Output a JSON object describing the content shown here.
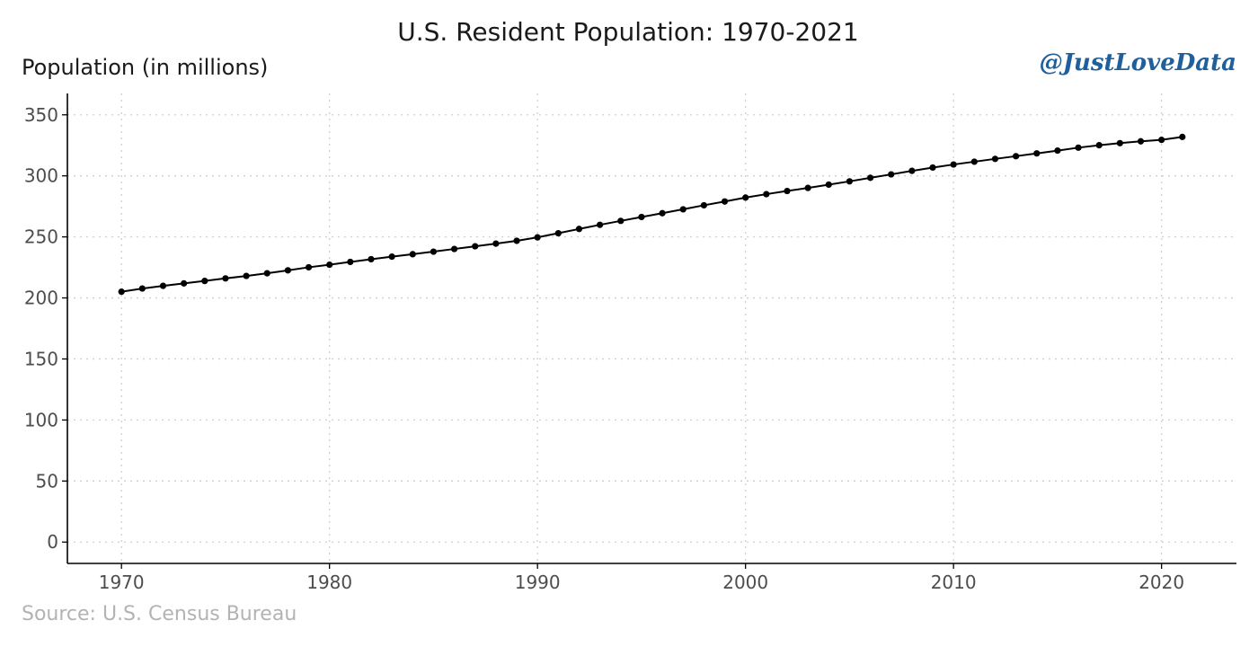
{
  "chart_data": {
    "type": "line",
    "title": "U.S. Resident Population: 1970-2021",
    "ylabel": "Population (in millions)",
    "xlabel": "",
    "caption": "Source: U.S. Census Bureau",
    "watermark": "@JustLoveData",
    "xlim": [
      1967.4,
      2023.6
    ],
    "ylim": [
      -17.5,
      367.5
    ],
    "xticks": [
      1970,
      1980,
      1990,
      2000,
      2010,
      2020
    ],
    "yticks": [
      0,
      50,
      100,
      150,
      200,
      250,
      300,
      350
    ],
    "grid": true,
    "legend": "none",
    "line_color": "#000000",
    "watermark_color": "#1f5f9c",
    "x": [
      1970,
      1971,
      1972,
      1973,
      1974,
      1975,
      1976,
      1977,
      1978,
      1979,
      1980,
      1981,
      1982,
      1983,
      1984,
      1985,
      1986,
      1987,
      1988,
      1989,
      1990,
      1991,
      1992,
      1993,
      1994,
      1995,
      1996,
      1997,
      1998,
      1999,
      2000,
      2001,
      2002,
      2003,
      2004,
      2005,
      2006,
      2007,
      2008,
      2009,
      2010,
      2011,
      2012,
      2013,
      2014,
      2015,
      2016,
      2017,
      2018,
      2019,
      2020,
      2021
    ],
    "y": [
      205.1,
      207.7,
      209.9,
      211.9,
      213.9,
      216.0,
      218.0,
      220.2,
      222.6,
      225.1,
      227.2,
      229.5,
      231.7,
      233.8,
      235.8,
      237.9,
      240.1,
      242.3,
      244.5,
      246.8,
      249.6,
      253.0,
      256.5,
      259.9,
      263.1,
      266.3,
      269.4,
      272.6,
      275.9,
      279.0,
      282.2,
      285.0,
      287.6,
      290.1,
      292.8,
      295.5,
      298.4,
      301.2,
      304.1,
      306.8,
      309.3,
      311.6,
      313.9,
      316.1,
      318.4,
      320.7,
      323.1,
      325.1,
      326.8,
      328.3,
      329.5,
      331.9
    ]
  }
}
